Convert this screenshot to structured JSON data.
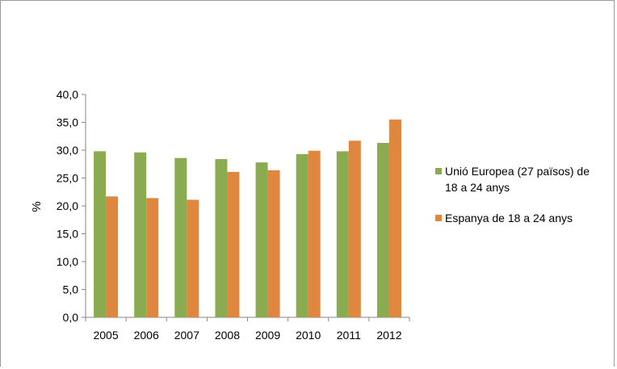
{
  "chart_data": {
    "type": "bar",
    "categories": [
      "2005",
      "2006",
      "2007",
      "2008",
      "2009",
      "2010",
      "2011",
      "2012"
    ],
    "series": [
      {
        "name": "Unió Europea (27 països) de 18 a 24 anys",
        "name_lines": [
          "Unió Europea (27 països) de",
          "18 a 24 anys"
        ],
        "color": "#8aab4f",
        "values": [
          29.8,
          29.6,
          28.6,
          28.4,
          27.8,
          29.3,
          29.8,
          31.3
        ]
      },
      {
        "name": "Espanya de 18 a 24 anys",
        "name_lines": [
          "Espanya de 18 a 24 anys"
        ],
        "color": "#e0873f",
        "values": [
          21.7,
          21.4,
          21.1,
          26.1,
          26.4,
          29.9,
          31.7,
          35.5
        ]
      }
    ],
    "yticks": [
      "0,0",
      "5,0",
      "10,0",
      "15,0",
      "20,0",
      "25,0",
      "30,0",
      "35,0",
      "40,0"
    ],
    "ylabel": "%",
    "xlabel": "",
    "title": "",
    "ylim": [
      0,
      40
    ],
    "legend": "right",
    "grid": false
  }
}
